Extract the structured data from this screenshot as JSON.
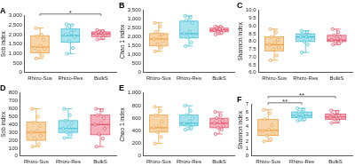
{
  "chart_data": [
    {
      "type": "box",
      "title": "A",
      "ylabel": "Sob index",
      "categories": [
        "Rhizo-Sus",
        "Rhizo-Res",
        "BulkS"
      ],
      "colors": [
        "#f0a040",
        "#40c0d8",
        "#e8506a"
      ],
      "ylim": [
        0,
        3000
      ],
      "yticks": [
        0,
        500,
        {
          "value": 1000,
          "label": "1,000"
        },
        {
          "value": 1500,
          "label": "1,500"
        },
        {
          "value": 2000,
          "label": "2,000"
        },
        {
          "value": 2500,
          "label": "2,500"
        },
        {
          "value": 3000,
          "label": "3,000"
        }
      ],
      "grid": false,
      "boxes": [
        {
          "min": 750,
          "q1": 1050,
          "median": 1350,
          "q3": 1950,
          "max": 2350,
          "points": [
            750,
            900,
            1100,
            1250,
            1300,
            1400,
            1750,
            1900,
            2000,
            2350
          ]
        },
        {
          "min": 1000,
          "q1": 1600,
          "median": 1950,
          "q3": 2300,
          "max": 2550,
          "points": [
            1000,
            1300,
            1650,
            1900,
            2000,
            2100,
            2250,
            2350,
            2500,
            2550
          ]
        },
        {
          "min": 1750,
          "q1": 1900,
          "median": 2050,
          "q3": 2150,
          "max": 2250,
          "points": [
            1750,
            1850,
            1950,
            2000,
            2050,
            2100,
            2100,
            2150,
            2200,
            2250
          ]
        }
      ],
      "annotations": [
        {
          "text": "*",
          "from": "Rhizo-Sus",
          "to": "BulkS"
        }
      ]
    },
    {
      "type": "box",
      "title": "B",
      "ylabel": "Chao 1 index",
      "categories": [
        "Rhizo-Sus",
        "Rhizo-Res",
        "BulkS"
      ],
      "colors": [
        "#f0a040",
        "#40c0d8",
        "#e8506a"
      ],
      "ylim": [
        0,
        3500
      ],
      "yticks": [
        0,
        500,
        {
          "value": 1000,
          "label": "1,000"
        },
        {
          "value": 1500,
          "label": "1,500"
        },
        {
          "value": 2000,
          "label": "2,000"
        },
        {
          "value": 2500,
          "label": "2,500"
        },
        {
          "value": 3000,
          "label": "3,000"
        },
        {
          "value": 3500,
          "label": "3,500"
        }
      ],
      "grid": false,
      "boxes": [
        {
          "min": 1200,
          "q1": 1500,
          "median": 1900,
          "q3": 2200,
          "max": 2800,
          "points": [
            1200,
            1400,
            1600,
            1800,
            1900,
            2000,
            2150,
            2300,
            2600,
            2800
          ]
        },
        {
          "min": 1500,
          "q1": 1950,
          "median": 2200,
          "q3": 2900,
          "max": 3200,
          "points": [
            1500,
            1700,
            2000,
            2100,
            2200,
            2300,
            2800,
            2950,
            3100,
            3200
          ]
        },
        {
          "min": 2150,
          "q1": 2300,
          "median": 2400,
          "q3": 2500,
          "max": 2600,
          "points": [
            2150,
            2250,
            2300,
            2350,
            2400,
            2450,
            2500,
            2550,
            2600,
            2600
          ]
        }
      ]
    },
    {
      "type": "box",
      "title": "C",
      "ylabel": "Shannon index",
      "categories": [
        "Rhizo-Sus",
        "Rhizo-Res",
        "BulkS"
      ],
      "colors": [
        "#f0a040",
        "#40c0d8",
        "#e8506a"
      ],
      "ylim": [
        6,
        10
      ],
      "yticks": [
        {
          "value": 6,
          "label": "6.0"
        },
        6.5,
        {
          "value": 7,
          "label": "7.0"
        },
        7.5,
        {
          "value": 8,
          "label": "8.0"
        },
        8.5,
        {
          "value": 9,
          "label": "9.0"
        },
        9.5,
        {
          "value": 10,
          "label": "10.0"
        }
      ],
      "grid": false,
      "boxes": [
        {
          "min": 6.8,
          "q1": 7.4,
          "median": 7.8,
          "q3": 8.3,
          "max": 8.8,
          "points": [
            6.8,
            7.1,
            7.5,
            7.6,
            7.8,
            7.9,
            8.1,
            8.3,
            8.6,
            8.8
          ]
        },
        {
          "min": 7.3,
          "q1": 8.0,
          "median": 8.3,
          "q3": 8.5,
          "max": 8.7,
          "points": [
            7.3,
            7.8,
            8.0,
            8.2,
            8.3,
            8.3,
            8.4,
            8.5,
            8.6,
            8.7
          ]
        },
        {
          "min": 7.8,
          "q1": 8.0,
          "median": 8.1,
          "q3": 8.4,
          "max": 8.8,
          "points": [
            7.8,
            7.9,
            8.0,
            8.0,
            8.1,
            8.2,
            8.3,
            8.4,
            8.6,
            8.8
          ]
        }
      ]
    },
    {
      "type": "box",
      "title": "D",
      "ylabel": "Sob index",
      "categories": [
        "Rhizo-Sus",
        "Rhizo-Res",
        "BulkS"
      ],
      "colors": [
        "#f0a040",
        "#40c0d8",
        "#e8506a"
      ],
      "ylim": [
        0,
        800
      ],
      "yticks": [
        0,
        100,
        200,
        300,
        400,
        500,
        600,
        700,
        800
      ],
      "grid": false,
      "boxes": [
        {
          "min": 120,
          "q1": 200,
          "median": 300,
          "q3": 430,
          "max": 600,
          "points": [
            120,
            150,
            220,
            260,
            300,
            320,
            380,
            430,
            500,
            600
          ]
        },
        {
          "min": 230,
          "q1": 300,
          "median": 350,
          "q3": 450,
          "max": 600,
          "points": [
            230,
            270,
            300,
            330,
            350,
            370,
            420,
            450,
            520,
            600
          ]
        },
        {
          "min": 120,
          "q1": 270,
          "median": 400,
          "q3": 520,
          "max": 600,
          "points": [
            120,
            220,
            280,
            350,
            400,
            420,
            480,
            520,
            580,
            600
          ]
        }
      ]
    },
    {
      "type": "box",
      "title": "E",
      "ylabel": "Chao 1 index",
      "categories": [
        "Rhizo-Sus",
        "Rhizo-Res",
        "BulkS"
      ],
      "colors": [
        "#f0a040",
        "#40c0d8",
        "#e8506a"
      ],
      "ylim": [
        0,
        1000
      ],
      "yticks": [
        0,
        200,
        400,
        600,
        800,
        {
          "value": 1000,
          "label": "1,000"
        }
      ],
      "grid": false,
      "boxes": [
        {
          "min": 200,
          "q1": 380,
          "median": 450,
          "q3": 650,
          "max": 780,
          "points": [
            200,
            300,
            380,
            420,
            450,
            480,
            550,
            650,
            720,
            780
          ]
        },
        {
          "min": 420,
          "q1": 480,
          "median": 520,
          "q3": 650,
          "max": 800,
          "points": [
            420,
            450,
            480,
            500,
            520,
            550,
            600,
            650,
            720,
            800
          ]
        },
        {
          "min": 350,
          "q1": 450,
          "median": 520,
          "q3": 600,
          "max": 700,
          "points": [
            350,
            420,
            450,
            480,
            520,
            540,
            560,
            600,
            650,
            700
          ]
        }
      ]
    },
    {
      "type": "box",
      "title": "F",
      "ylabel": "Shannon index",
      "categories": [
        "Rhizo-Sus",
        "Rhizo-Res",
        "BulkS"
      ],
      "colors": [
        "#f0a040",
        "#40c0d8",
        "#e8506a"
      ],
      "ylim": [
        0,
        7
      ],
      "yticks": [
        0,
        1,
        2,
        3,
        4,
        5,
        6,
        7
      ],
      "grid": false,
      "boxes": [
        {
          "min": 2.0,
          "q1": 2.8,
          "median": 3.5,
          "q3": 5.0,
          "max": 6.3,
          "points": [
            2.0,
            2.3,
            2.8,
            3.0,
            3.4,
            3.6,
            4.2,
            5.0,
            5.8,
            6.3
          ]
        },
        {
          "min": 4.8,
          "q1": 5.2,
          "median": 5.5,
          "q3": 6.0,
          "max": 6.5,
          "points": [
            4.8,
            5.0,
            5.2,
            5.4,
            5.5,
            5.6,
            5.8,
            6.0,
            6.3,
            6.5
          ]
        },
        {
          "min": 4.5,
          "q1": 5.0,
          "median": 5.3,
          "q3": 5.7,
          "max": 6.2,
          "points": [
            4.5,
            4.8,
            5.0,
            5.2,
            5.3,
            5.4,
            5.5,
            5.7,
            6.0,
            6.2
          ]
        }
      ],
      "annotations": [
        {
          "text": "**",
          "from": "Rhizo-Sus",
          "to": "Rhizo-Res"
        },
        {
          "text": "**",
          "from": "Rhizo-Sus",
          "to": "BulkS"
        }
      ]
    }
  ]
}
